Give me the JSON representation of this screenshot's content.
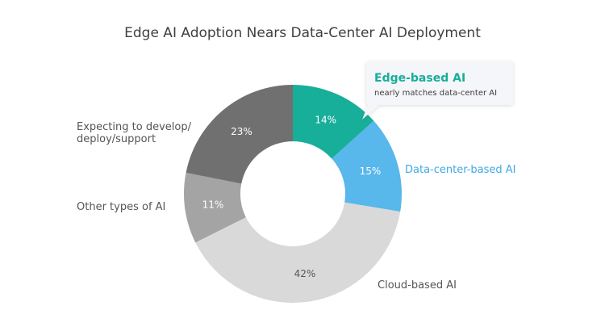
{
  "chart_data": {
    "type": "pie",
    "style": "donut",
    "title": "Edge AI Adoption Nears Data-Center AI Deployment",
    "slices": [
      {
        "name": "Edge-based AI",
        "value": 14,
        "label": "14%",
        "color": "#17ae9a",
        "label_color": "#ffffff"
      },
      {
        "name": "Data-center-based AI",
        "value": 15,
        "label": "15%",
        "color": "#58b7eb",
        "label_color": "#ffffff"
      },
      {
        "name": "Cloud-based AI",
        "value": 42,
        "label": "42%",
        "color": "#d9d9d9",
        "label_color": "#555555"
      },
      {
        "name": "Other types of AI",
        "value": 11,
        "label": "11%",
        "color": "#a4a4a4",
        "label_color": "#ffffff"
      },
      {
        "name": "Expecting to develop/ deploy/support",
        "value": 23,
        "label": "23%",
        "color": "#707070",
        "label_color": "#ffffff"
      }
    ],
    "category_labels": {
      "data_center": {
        "text": "Data-center-based AI",
        "color": "#3fa9e3"
      },
      "cloud": {
        "text": "Cloud-based AI",
        "color": "#555555"
      },
      "other": {
        "text": "Other types of AI",
        "color": "#555555"
      },
      "expecting_line1": {
        "text": "Expecting to develop/",
        "color": "#555555"
      },
      "expecting_line2": {
        "text": "deploy/support",
        "color": "#555555"
      }
    },
    "callout": {
      "title": "Edge-based AI",
      "subtitle": "nearly matches data-center AI",
      "title_color": "#17ae9a"
    },
    "legend": "none"
  }
}
